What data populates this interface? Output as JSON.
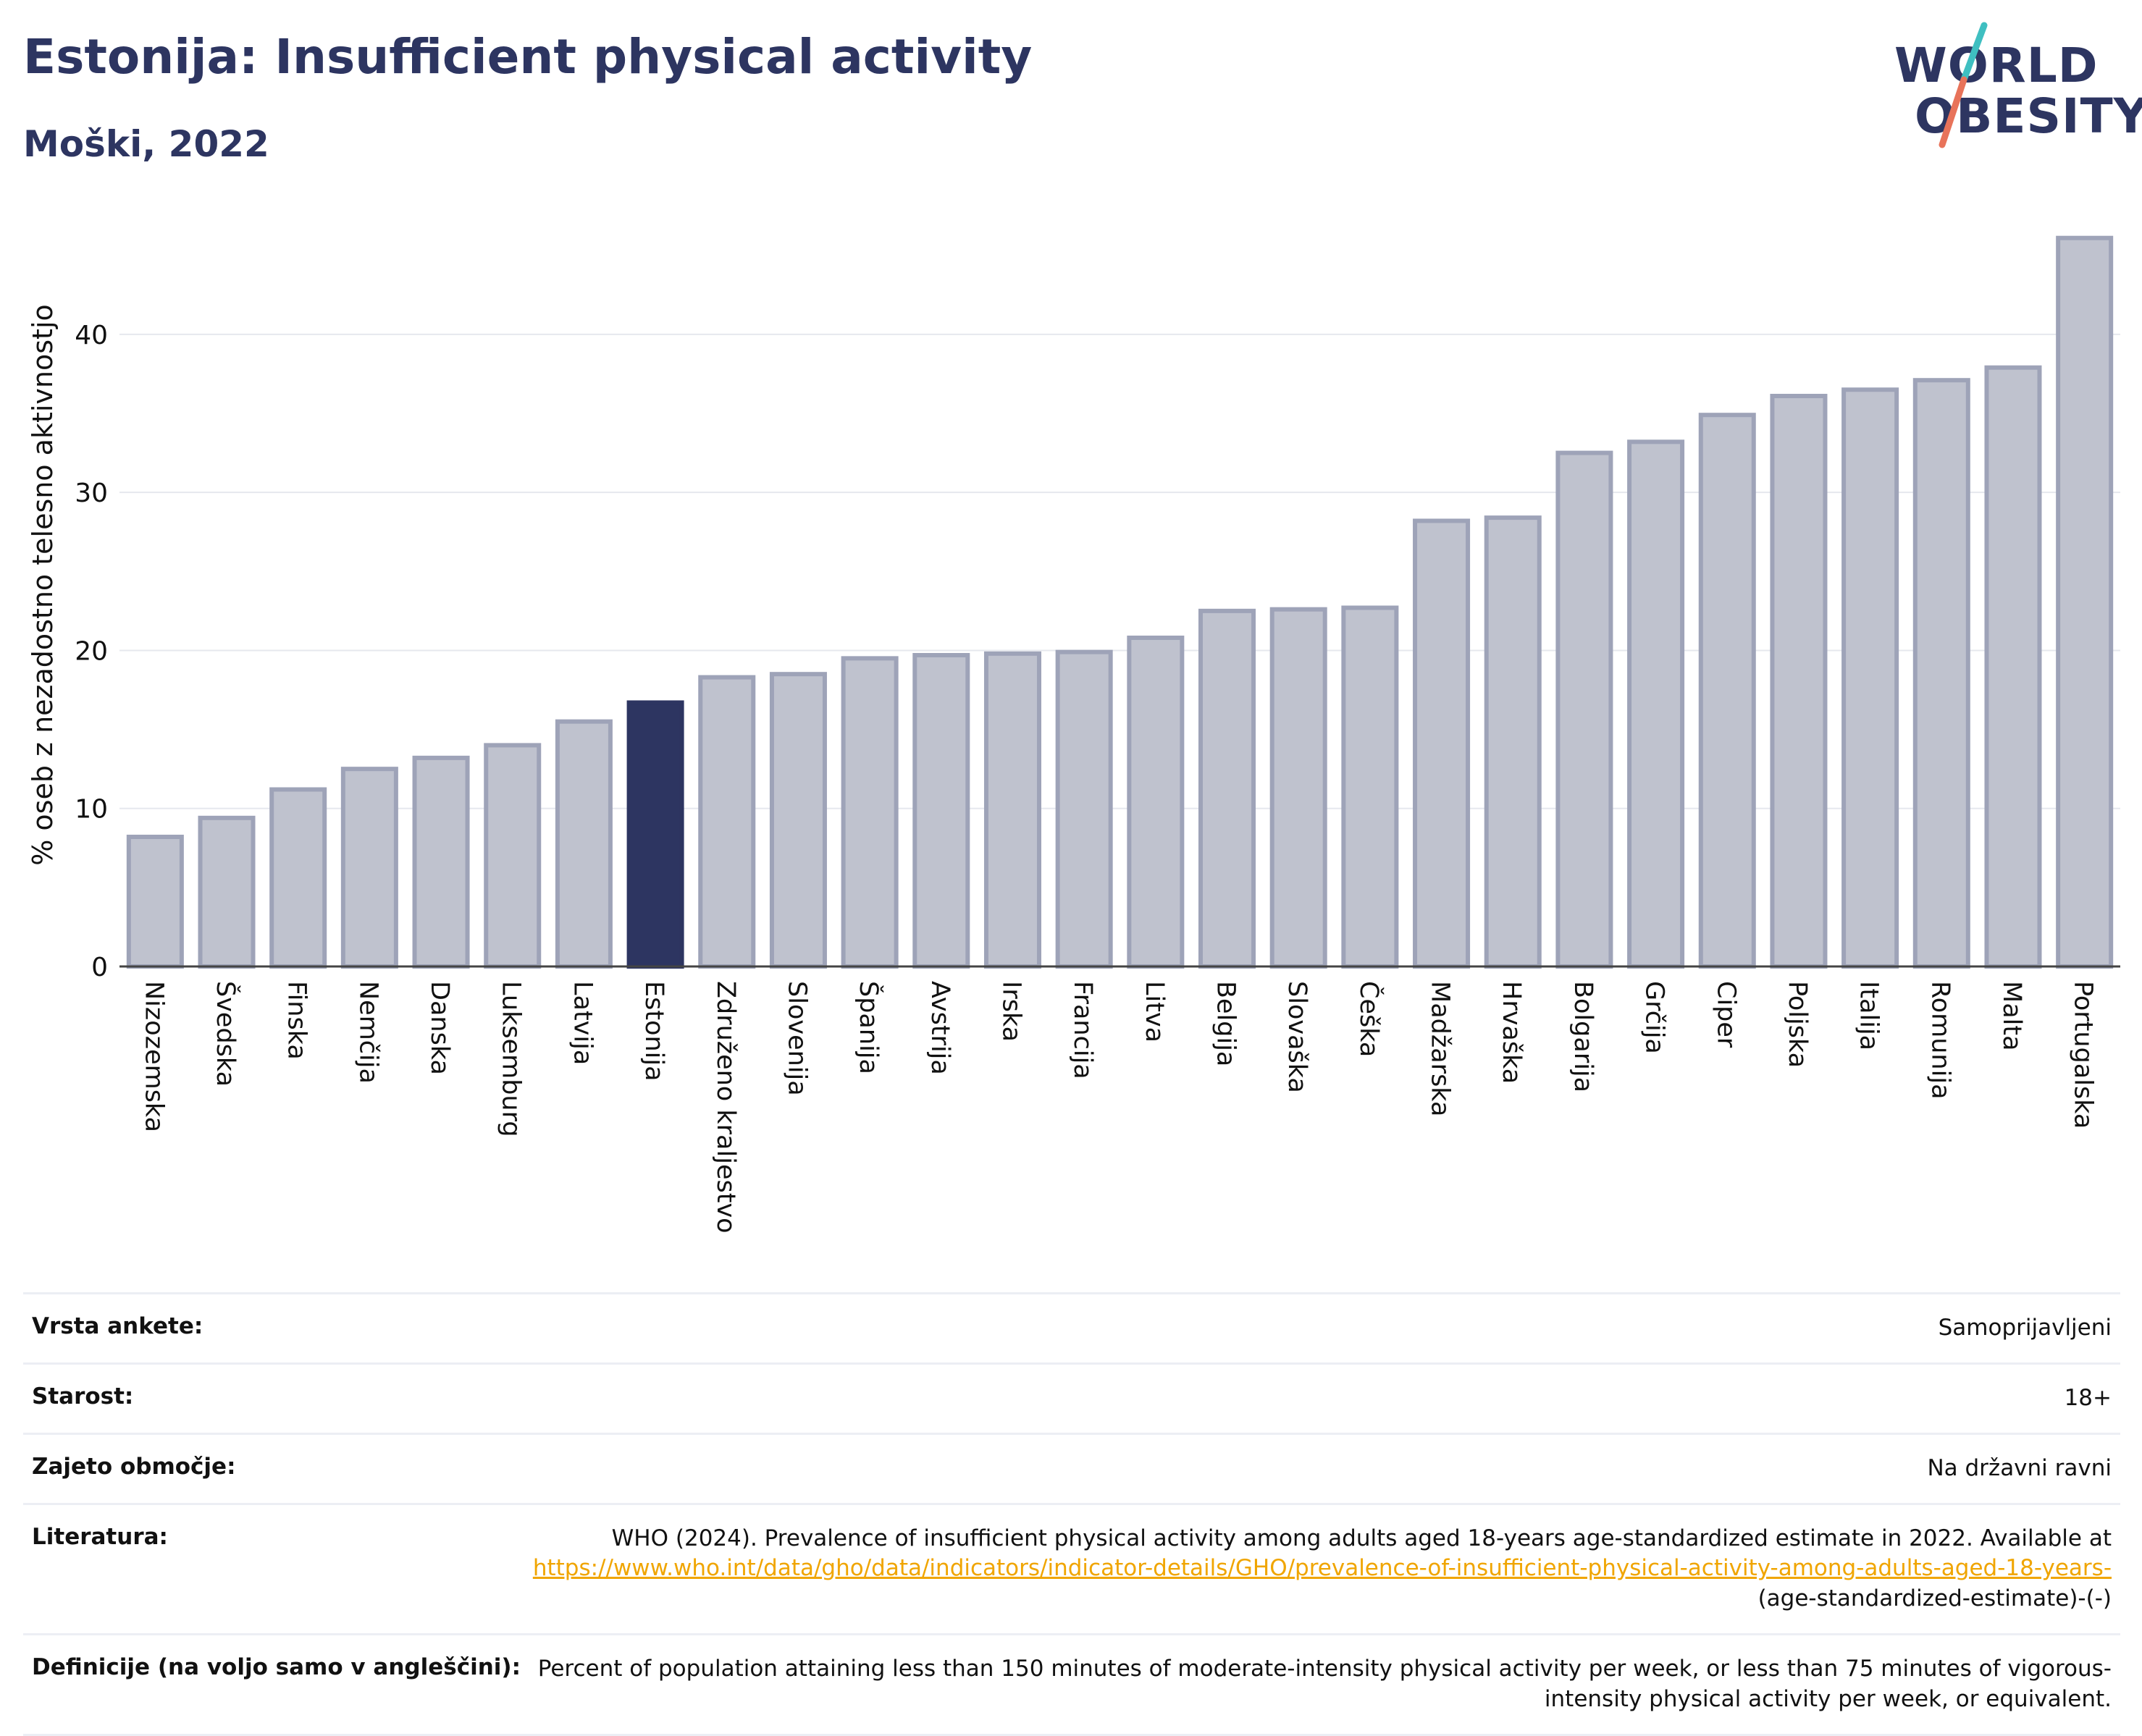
{
  "header": {
    "title": "Estonija: Insufficient physical activity",
    "subtitle": "Moški, 2022"
  },
  "logo": {
    "line1": "WORLD",
    "line2": "OBESITY",
    "slash_colors": [
      "#3fbfc1",
      "#e8735a"
    ]
  },
  "chart_data": {
    "type": "bar",
    "ylabel": "% oseb z nezadostno telesno aktivnostjo",
    "ylim": [
      0,
      46.5
    ],
    "yticks": [
      0,
      10,
      20,
      30,
      40
    ],
    "grid": true,
    "highlight": "Estonija",
    "colors": {
      "bar": "#bfc2ce",
      "bar_border": "#9ea3b8",
      "highlight": "#2d3561",
      "grid": "#e6e8ee"
    },
    "categories": [
      "Nizozemska",
      "Švedska",
      "Finska",
      "Nemčija",
      "Danska",
      "Luksemburg",
      "Latvija",
      "Estonija",
      "Združeno kraljestvo",
      "Slovenija",
      "Španija",
      "Avstrija",
      "Irska",
      "Francija",
      "Litva",
      "Belgija",
      "Slovaška",
      "Češka",
      "Madžarska",
      "Hrvaška",
      "Bolgarija",
      "Grčija",
      "Ciper",
      "Poljska",
      "Italija",
      "Romunija",
      "Malta",
      "Portugalska"
    ],
    "values": [
      8.2,
      9.4,
      11.2,
      12.5,
      13.2,
      14.0,
      15.5,
      16.7,
      18.3,
      18.5,
      19.5,
      19.7,
      19.8,
      19.9,
      20.8,
      22.5,
      22.6,
      22.7,
      28.2,
      28.4,
      32.5,
      33.2,
      34.9,
      36.1,
      36.5,
      37.1,
      37.9,
      46.1
    ]
  },
  "meta": {
    "rows": [
      {
        "label": "Vrsta ankete:",
        "value": "Samoprijavljeni"
      },
      {
        "label": "Starost:",
        "value": "18+"
      },
      {
        "label": "Zajeto območje:",
        "value": "Na državni ravni"
      },
      {
        "label": "Literatura:",
        "value": "WHO (2024). Prevalence of insufficient physical activity among adults aged 18-years age-standardized estimate in 2022. Available at",
        "link": "https://www.who.int/data/gho/data/indicators/indicator-details/GHO/prevalence-of-insufficient-physical-activity-among-adults-aged-18-years-",
        "suffix": "(age-standardized-estimate)-(-)"
      },
      {
        "label": "Definicije (na voljo samo v angleščini):",
        "value": "Percent of population attaining less than 150 minutes of moderate-intensity physical activity per week, or less than 75 minutes of vigorous-intensity physical activity per week, or equivalent."
      }
    ]
  }
}
